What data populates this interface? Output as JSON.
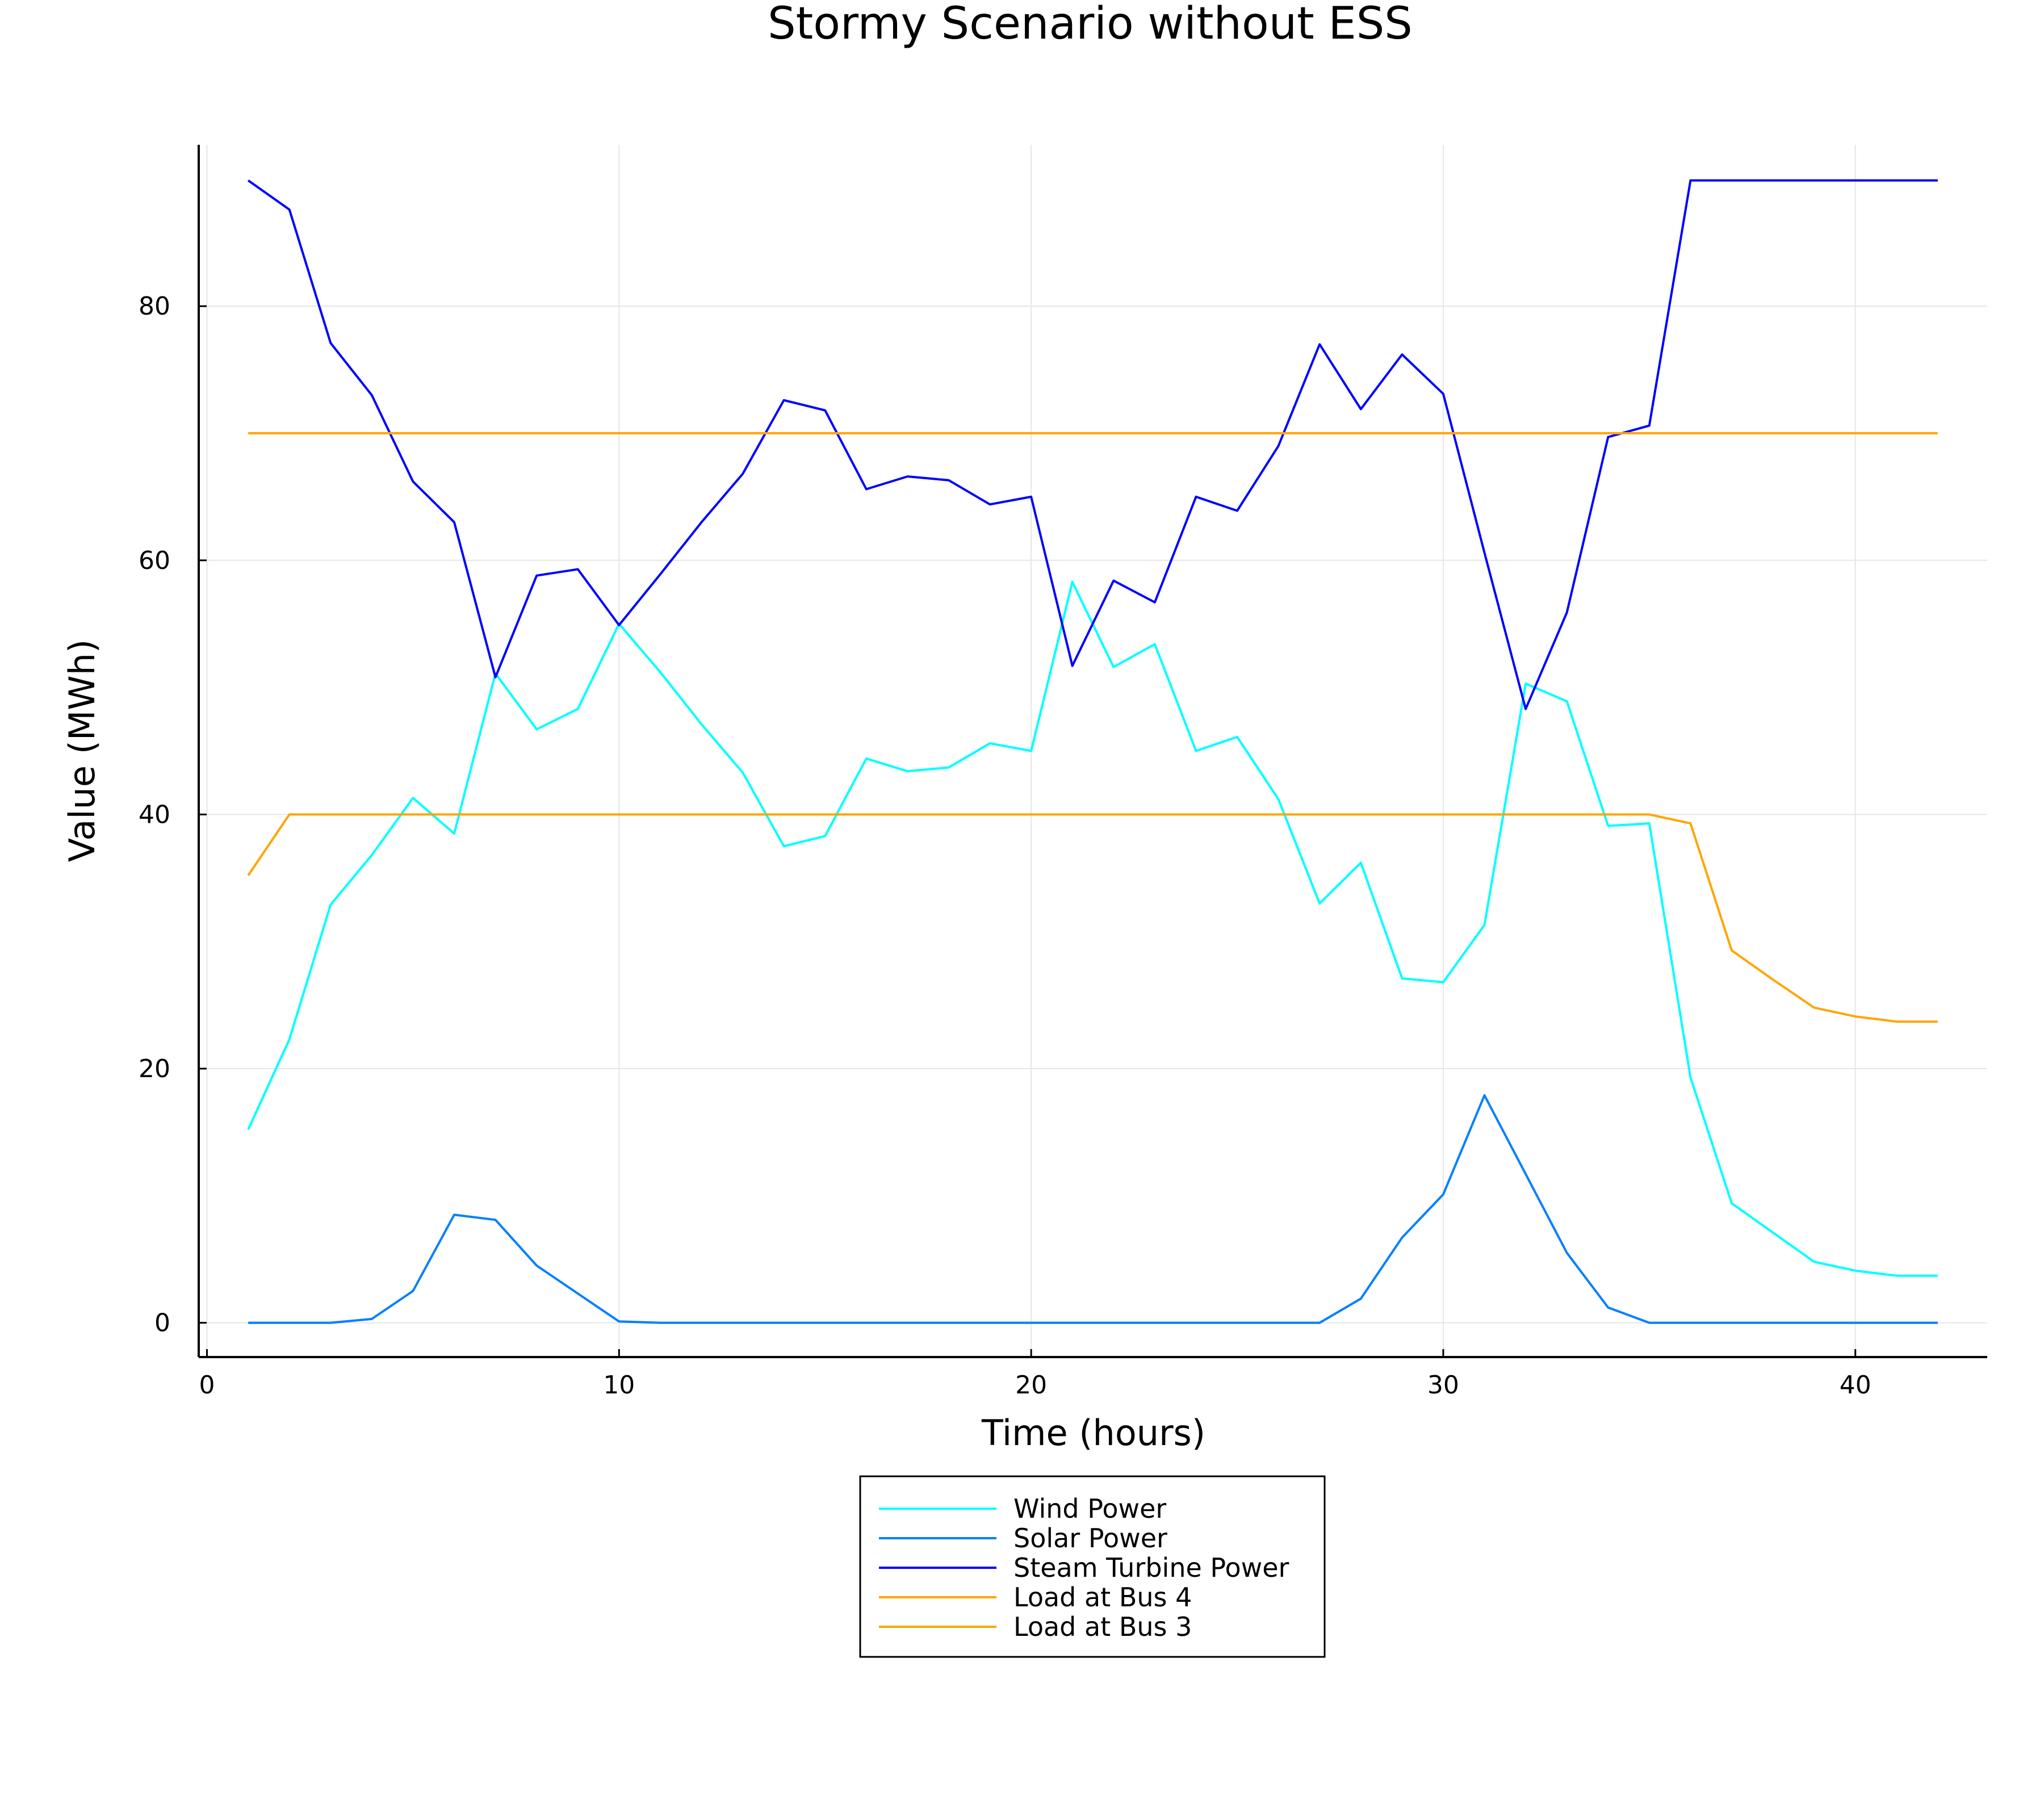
{
  "chart_data": {
    "type": "line",
    "title": "Stormy Scenario without ESS",
    "xlabel": "Time (hours)",
    "ylabel": "Value (MWh)",
    "xlim": [
      -0.2,
      43.2
    ],
    "ylim": [
      -2.7,
      92.7
    ],
    "xticks": [
      0,
      10,
      20,
      30,
      40
    ],
    "yticks": [
      0,
      20,
      40,
      60,
      80
    ],
    "grid": true,
    "legend_position": "bottom-center",
    "x": [
      1,
      2,
      3,
      4,
      5,
      6,
      7,
      8,
      9,
      10,
      11,
      12,
      13,
      14,
      15,
      16,
      17,
      18,
      19,
      20,
      21,
      22,
      23,
      24,
      25,
      26,
      27,
      28,
      29,
      30,
      31,
      32,
      33,
      34,
      35,
      36,
      37,
      38,
      39,
      40,
      41,
      42
    ],
    "series": [
      {
        "name": "Wind Power",
        "color": "#00ffff",
        "values": [
          15.2,
          22.3,
          32.9,
          36.8,
          41.3,
          38.5,
          51.1,
          46.7,
          48.3,
          55.0,
          51.2,
          47.1,
          43.3,
          37.5,
          38.3,
          44.4,
          43.4,
          43.7,
          45.6,
          45.0,
          58.3,
          51.6,
          53.4,
          45.0,
          46.1,
          41.2,
          33.0,
          36.2,
          27.1,
          26.8,
          31.3,
          50.3,
          48.9,
          39.1,
          39.3,
          19.3,
          9.4,
          7.1,
          4.8,
          4.1,
          3.7,
          3.7
        ]
      },
      {
        "name": "Solar Power",
        "color": "#0080ff",
        "values": [
          0,
          0,
          0,
          0.3,
          2.5,
          8.5,
          8.1,
          4.5,
          2.3,
          0.1,
          0,
          0,
          0,
          0,
          0,
          0,
          0,
          0,
          0,
          0,
          0,
          0,
          0,
          0,
          0,
          0,
          0,
          1.9,
          6.7,
          10.1,
          17.9,
          11.7,
          5.5,
          1.2,
          0,
          0,
          0,
          0,
          0,
          0,
          0,
          0
        ]
      },
      {
        "name": "Steam Turbine Power",
        "color": "#0000ff",
        "values": [
          89.9,
          87.6,
          77.1,
          73.0,
          66.2,
          63.0,
          50.8,
          58.8,
          59.3,
          54.9,
          58.9,
          63.0,
          66.8,
          72.6,
          71.8,
          65.6,
          66.6,
          66.3,
          64.4,
          65.0,
          51.7,
          58.4,
          56.7,
          65.0,
          63.9,
          69.0,
          77.0,
          71.9,
          76.2,
          73.1,
          60.6,
          48.3,
          55.9,
          69.7,
          70.6,
          89.9,
          89.9,
          89.9,
          89.9,
          89.9,
          89.9,
          89.9
        ]
      },
      {
        "name": "Load at Bus 4",
        "color": "#ffa500",
        "values": [
          70,
          70,
          70,
          70,
          70,
          70,
          70,
          70,
          70,
          70,
          70,
          70,
          70,
          70,
          70,
          70,
          70,
          70,
          70,
          70,
          70,
          70,
          70,
          70,
          70,
          70,
          70,
          70,
          70,
          70,
          70,
          70,
          70,
          70,
          70,
          70,
          70,
          70,
          70,
          70,
          70,
          70
        ]
      },
      {
        "name": "Load at Bus 3",
        "color": "#ffa500",
        "values": [
          35.2,
          40,
          40,
          40,
          40,
          40,
          40,
          40,
          40,
          40,
          40,
          40,
          40,
          40,
          40,
          40,
          40,
          40,
          40,
          40,
          40,
          40,
          40,
          40,
          40,
          40,
          40,
          40,
          40,
          40,
          40,
          40,
          40,
          40,
          40,
          39.3,
          29.3,
          27.0,
          24.8,
          24.1,
          23.7,
          23.7
        ]
      }
    ]
  }
}
